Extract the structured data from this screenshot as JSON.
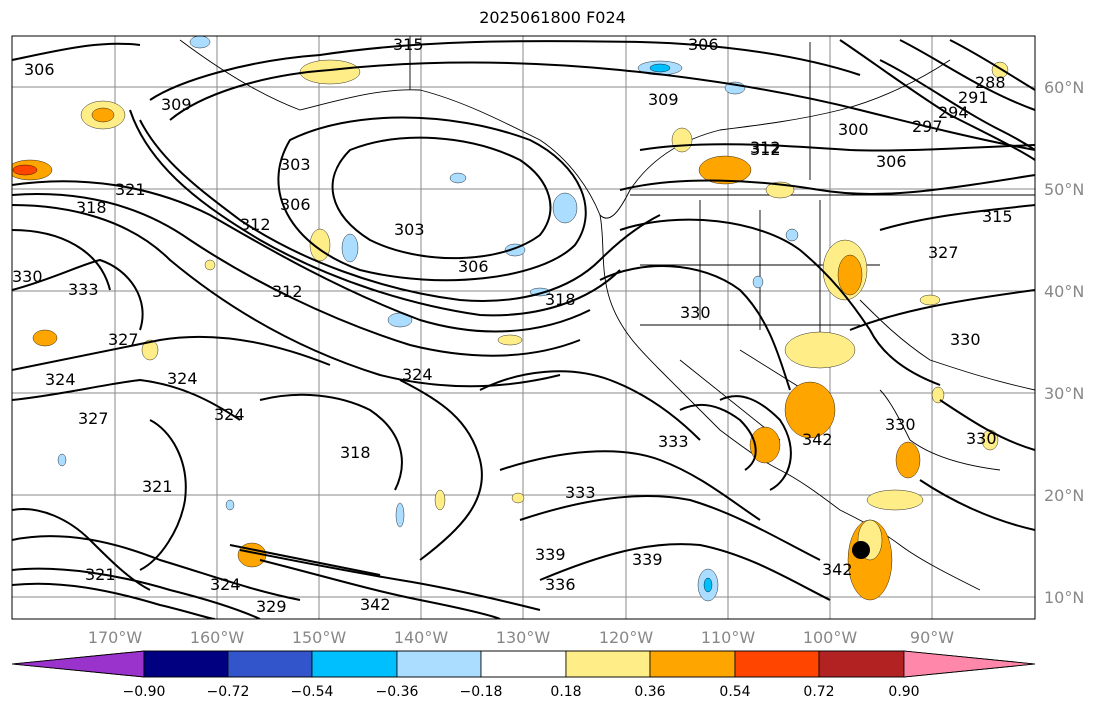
{
  "title": "2025061800 F024",
  "map": {
    "background": "#ffffff",
    "grid_color": "#8a8a8a",
    "contour_color": "#000000",
    "marker": "filled black circle"
  },
  "lat_labels": [
    "60°N",
    "50°N",
    "40°N",
    "30°N",
    "20°N",
    "10°N"
  ],
  "lon_labels": [
    "170°W",
    "160°W",
    "150°W",
    "140°W",
    "130°W",
    "120°W",
    "110°W",
    "100°W",
    "90°W"
  ],
  "contour_labels": [
    "306",
    "315",
    "306",
    "309",
    "303",
    "306",
    "312",
    "303",
    "312",
    "306",
    "312",
    "318",
    "321",
    "318",
    "324",
    "330",
    "333",
    "327",
    "324",
    "324",
    "324",
    "327",
    "321",
    "318",
    "324",
    "330",
    "333",
    "321",
    "339",
    "342",
    "339",
    "336",
    "333",
    "342",
    "300",
    "297",
    "294",
    "291",
    "288",
    "306",
    "312",
    "315",
    "327",
    "330",
    "330",
    "330",
    "342",
    "329",
    "309"
  ],
  "colorbar": {
    "ticks": [
      "−0.90",
      "−0.72",
      "−0.54",
      "−0.36",
      "−0.18",
      "0.18",
      "0.36",
      "0.54",
      "0.72",
      "0.90"
    ],
    "colors": [
      "#9933cc",
      "#000080",
      "#3355cc",
      "#00bfff",
      "#aaddff",
      "#ffffff",
      "#ffee88",
      "#ffa500",
      "#ff4500",
      "#b22222",
      "#ff88aa"
    ]
  },
  "fills": {
    "positive_colors": [
      "#ffee88",
      "#ffa500",
      "#ff4500"
    ],
    "negative_colors": [
      "#aaddff",
      "#00bfff"
    ]
  }
}
